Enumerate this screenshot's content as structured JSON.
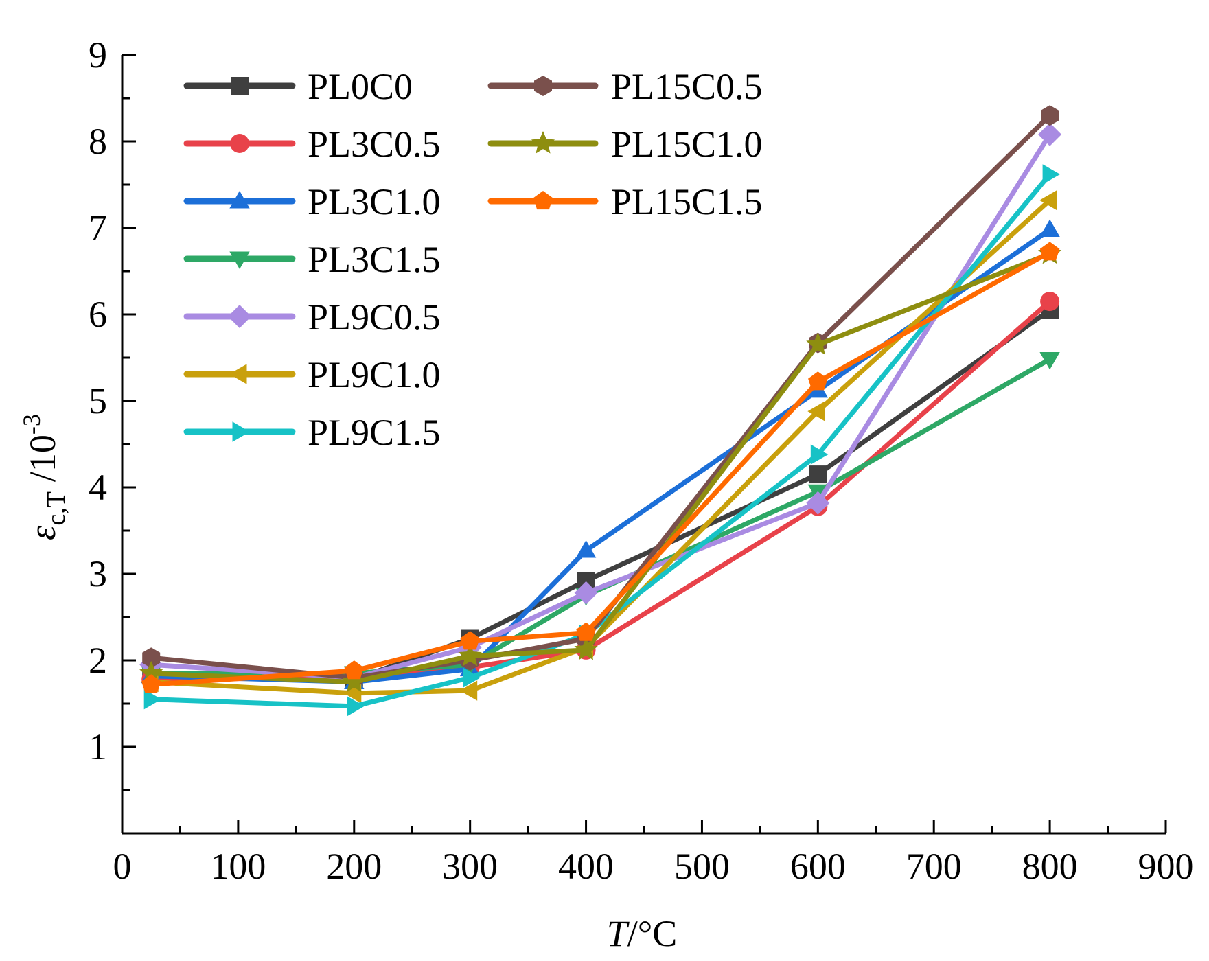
{
  "chart_data": {
    "type": "line",
    "xlabel": {
      "var": "T",
      "unit": "/°C"
    },
    "ylabel": {
      "symbol": "ε",
      "subscript": "c,T",
      "unit_base": "/10",
      "unit_exp": "-3"
    },
    "xlim": [
      0,
      900
    ],
    "ylim": [
      0,
      9
    ],
    "xticks": [
      "0",
      "100",
      "200",
      "300",
      "400",
      "500",
      "600",
      "700",
      "800",
      "900"
    ],
    "yticks": [
      "1",
      "2",
      "3",
      "4",
      "5",
      "6",
      "7",
      "8",
      "9"
    ],
    "legend_placement": "top-left, two columns",
    "x": [
      25,
      200,
      300,
      400,
      600,
      800
    ],
    "series": [
      {
        "name": "PL0C0",
        "color": "#3f3f3f",
        "marker": "square",
        "values": [
          1.85,
          1.78,
          2.25,
          2.92,
          4.15,
          6.05
        ]
      },
      {
        "name": "PL3C0.5",
        "color": "#e8424a",
        "marker": "circle",
        "values": [
          1.78,
          1.8,
          1.92,
          2.12,
          3.78,
          6.15
        ]
      },
      {
        "name": "PL3C1.0",
        "color": "#1c6fd8",
        "marker": "triangle-up",
        "values": [
          1.82,
          1.75,
          1.9,
          3.27,
          5.12,
          6.98
        ]
      },
      {
        "name": "PL3C1.5",
        "color": "#2ea866",
        "marker": "triangle-down",
        "values": [
          1.85,
          1.85,
          1.95,
          2.75,
          3.95,
          5.48
        ]
      },
      {
        "name": "PL9C0.5",
        "color": "#a98be2",
        "marker": "diamond",
        "values": [
          1.95,
          1.8,
          2.15,
          2.78,
          3.82,
          8.08
        ]
      },
      {
        "name": "PL9C1.0",
        "color": "#c9a00c",
        "marker": "triangle-left",
        "values": [
          1.75,
          1.62,
          1.65,
          2.15,
          4.88,
          7.32
        ]
      },
      {
        "name": "PL9C1.5",
        "color": "#17c2c6",
        "marker": "triangle-right",
        "values": [
          1.55,
          1.47,
          1.8,
          2.3,
          4.38,
          7.62
        ]
      },
      {
        "name": "PL15C0.5",
        "color": "#7a504c",
        "marker": "hexagon",
        "values": [
          2.03,
          1.8,
          2.0,
          2.25,
          5.67,
          8.3
        ]
      },
      {
        "name": "PL15C1.0",
        "color": "#8e8e10",
        "marker": "star",
        "values": [
          1.85,
          1.75,
          2.05,
          2.12,
          5.65,
          6.7
        ]
      },
      {
        "name": "PL15C1.5",
        "color": "#ff6a00",
        "marker": "pentagon",
        "values": [
          1.72,
          1.88,
          2.22,
          2.32,
          5.22,
          6.72
        ]
      }
    ]
  }
}
